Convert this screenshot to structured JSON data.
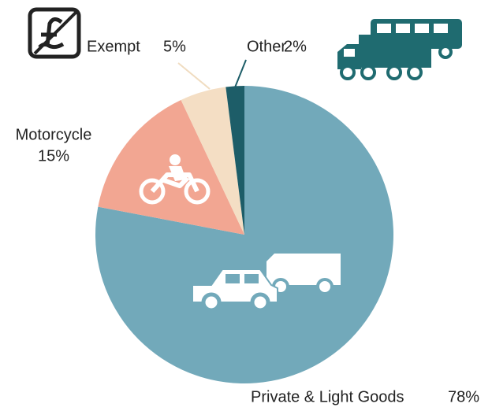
{
  "chart_data": {
    "type": "pie",
    "categories": [
      "Private & Light Goods",
      "Motorcycle",
      "Exempt",
      "Other"
    ],
    "values": [
      78,
      15,
      5,
      2
    ],
    "value_labels": [
      "78%",
      "15%",
      "5%",
      "2%"
    ],
    "colors": [
      "#72a9ba",
      "#f2a692",
      "#f4dec4",
      "#1d5d68"
    ]
  }
}
